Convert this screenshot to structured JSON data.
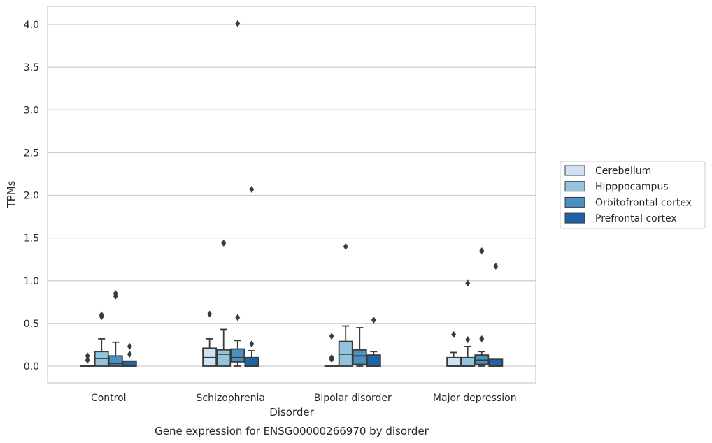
{
  "chart_data": {
    "type": "box",
    "caption": "Gene expression for ENSG00000266970 by disorder",
    "xlabel": "Disorder",
    "ylabel": "TPMs",
    "ylim": [
      -0.2,
      4.22
    ],
    "yticks": [
      "0.0",
      "0.5",
      "1.0",
      "1.5",
      "2.0",
      "2.5",
      "3.0",
      "3.5",
      "4.0"
    ],
    "grid": "horizontal",
    "legend_position": "right",
    "categories": [
      "Control",
      "Schizophrenia",
      "Bipolar disorder",
      "Major depression"
    ],
    "series": [
      {
        "name": "Cerebellum",
        "color": "#cfe1f2",
        "boxes": [
          {
            "min": 0,
            "q1": 0,
            "median": 0,
            "q3": 0,
            "max": 0,
            "outliers": [
              0.07,
              0.12
            ]
          },
          {
            "min": 0,
            "q1": 0,
            "median": 0.1,
            "q3": 0.21,
            "max": 0.32,
            "outliers": [
              0.61
            ]
          },
          {
            "min": 0,
            "q1": 0,
            "median": 0,
            "q3": 0,
            "max": 0,
            "outliers": [
              0.08,
              0.1,
              0.35
            ]
          },
          {
            "min": 0,
            "q1": 0,
            "median": 0,
            "q3": 0.1,
            "max": 0.16,
            "outliers": [
              0.37
            ]
          }
        ]
      },
      {
        "name": "Hipppocampus",
        "color": "#93c4de",
        "boxes": [
          {
            "min": 0,
            "q1": 0,
            "median": 0.09,
            "q3": 0.17,
            "max": 0.32,
            "outliers": [
              0.58,
              0.6
            ]
          },
          {
            "min": 0,
            "q1": 0,
            "median": 0.14,
            "q3": 0.19,
            "max": 0.43,
            "outliers": [
              1.44
            ]
          },
          {
            "min": 0,
            "q1": 0,
            "median": 0.14,
            "q3": 0.29,
            "max": 0.47,
            "outliers": [
              1.4
            ]
          },
          {
            "min": 0,
            "q1": 0,
            "median": 0,
            "q3": 0.1,
            "max": 0.23,
            "outliers": [
              0.31,
              0.97
            ]
          }
        ]
      },
      {
        "name": "Orbitofrontal cortex",
        "color": "#4a90c2",
        "boxes": [
          {
            "min": 0,
            "q1": 0,
            "median": 0.03,
            "q3": 0.12,
            "max": 0.28,
            "outliers": [
              0.82,
              0.85
            ]
          },
          {
            "min": 0,
            "q1": 0.05,
            "median": 0.1,
            "q3": 0.2,
            "max": 0.3,
            "outliers": [
              0.57,
              4.01
            ]
          },
          {
            "min": 0,
            "q1": 0.02,
            "median": 0.12,
            "q3": 0.19,
            "max": 0.45,
            "outliers": []
          },
          {
            "min": 0,
            "q1": 0.02,
            "median": 0.07,
            "q3": 0.13,
            "max": 0.17,
            "outliers": [
              0.32,
              1.35
            ]
          }
        ]
      },
      {
        "name": "Prefrontal cortex",
        "color": "#1e63a8",
        "boxes": [
          {
            "min": 0,
            "q1": 0,
            "median": 0,
            "q3": 0.06,
            "max": 0.06,
            "outliers": [
              0.14,
              0.23
            ]
          },
          {
            "min": 0,
            "q1": 0,
            "median": 0,
            "q3": 0.1,
            "max": 0.18,
            "outliers": [
              0.26,
              2.07
            ]
          },
          {
            "min": 0,
            "q1": 0,
            "median": 0,
            "q3": 0.13,
            "max": 0.17,
            "outliers": [
              0.54
            ]
          },
          {
            "min": 0,
            "q1": 0,
            "median": 0,
            "q3": 0.08,
            "max": 0.08,
            "outliers": [
              1.17
            ]
          }
        ]
      }
    ]
  }
}
